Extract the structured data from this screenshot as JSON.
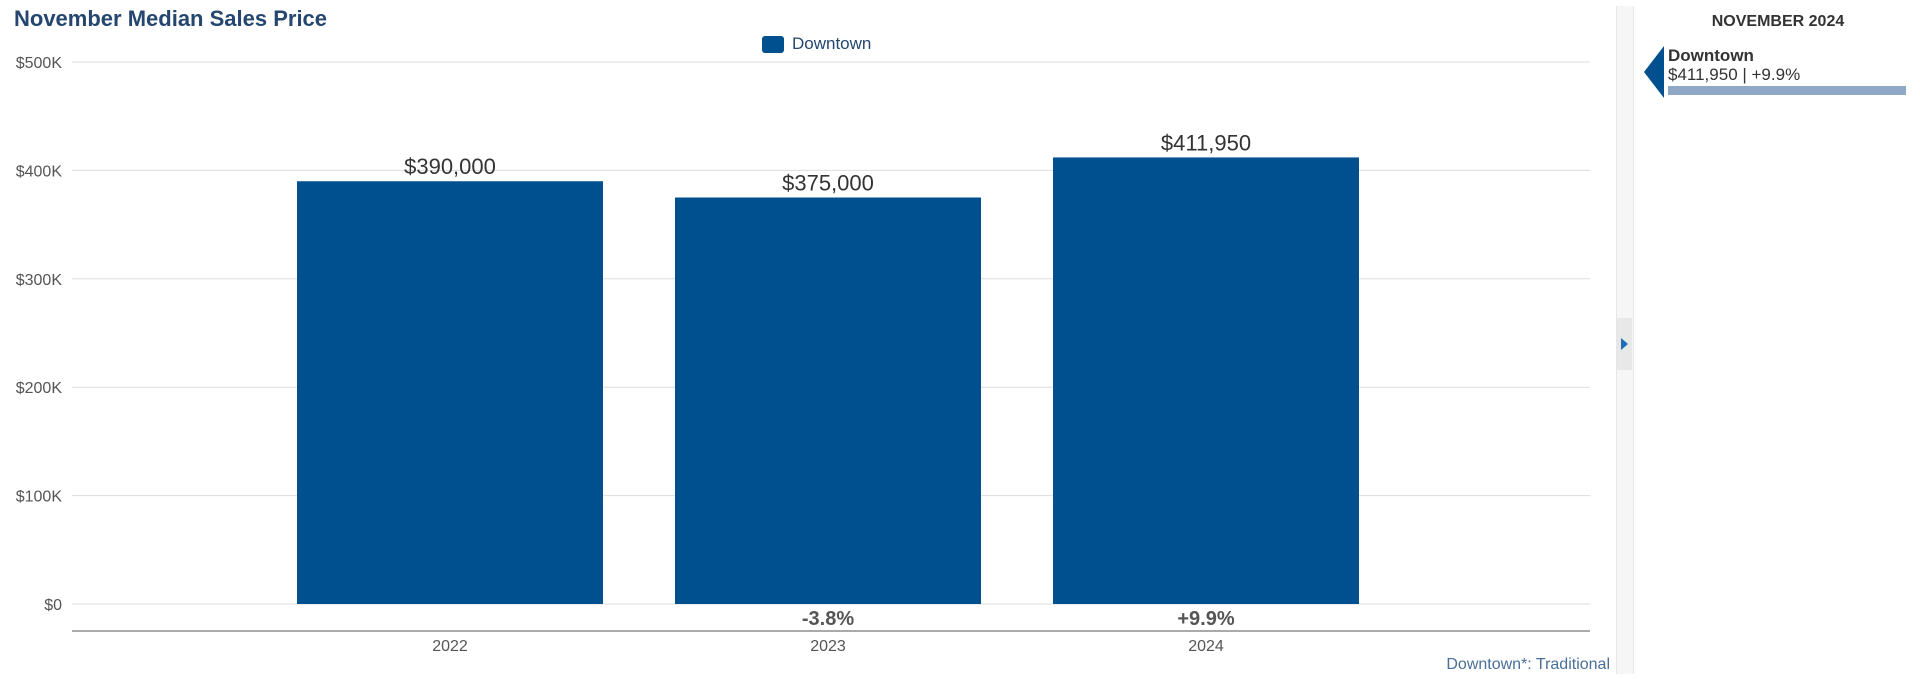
{
  "colors": {
    "bar": "#004f8f",
    "title": "#24466f",
    "grid": "#dddddd",
    "axis": "#555555",
    "side_bar": "#8ea8c6"
  },
  "chart_data": {
    "type": "bar",
    "title": "November Median Sales Price",
    "xlabel": "",
    "ylabel": "",
    "categories": [
      "2022",
      "2023",
      "2024"
    ],
    "series": [
      {
        "name": "Downtown",
        "values": [
          390000,
          375000,
          411950
        ]
      }
    ],
    "data_labels": [
      "$390,000",
      "$375,000",
      "$411,950"
    ],
    "change_labels": [
      "",
      "-3.8%",
      "+9.9%"
    ],
    "ylim": [
      0,
      500000
    ],
    "yticks": [
      0,
      100000,
      200000,
      300000,
      400000,
      500000
    ],
    "ytick_labels": [
      "$0",
      "$100K",
      "$200K",
      "$300K",
      "$400K",
      "$500K"
    ],
    "grid": true,
    "legend": "top-center"
  },
  "legend_label": "Downtown",
  "footnote": "Downtown*: Traditional",
  "side_panel": {
    "heading": "NOVEMBER 2024",
    "entries": [
      {
        "name": "Downtown",
        "value_text": "$411,950 | +9.9%",
        "bar_fraction": 1.0
      }
    ]
  }
}
